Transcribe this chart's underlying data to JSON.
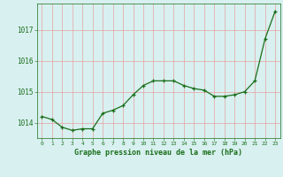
{
  "x": [
    0,
    1,
    2,
    3,
    4,
    5,
    6,
    7,
    8,
    9,
    10,
    11,
    12,
    13,
    14,
    15,
    16,
    17,
    18,
    19,
    20,
    21,
    22,
    23
  ],
  "y": [
    1014.2,
    1014.1,
    1013.85,
    1013.75,
    1013.8,
    1013.8,
    1014.3,
    1014.4,
    1014.55,
    1014.9,
    1015.2,
    1015.35,
    1015.35,
    1015.35,
    1015.2,
    1015.1,
    1015.05,
    1014.85,
    1014.85,
    1014.9,
    1015.0,
    1015.35,
    1016.7,
    1017.6
  ],
  "line_color": "#1a6e1a",
  "marker": "+",
  "bg_color": "#d8f0f0",
  "grid_color": "#e8a0a0",
  "axis_label_color": "#1a6e1a",
  "tick_color": "#1a6e1a",
  "xlabel": "Graphe pression niveau de la mer (hPa)",
  "ylim": [
    1013.5,
    1017.85
  ],
  "yticks": [
    1014,
    1015,
    1016,
    1017
  ],
  "xtick_labels": [
    "0",
    "1",
    "2",
    "3",
    "4",
    "5",
    "6",
    "7",
    "8",
    "9",
    "10",
    "11",
    "12",
    "13",
    "14",
    "15",
    "16",
    "17",
    "18",
    "19",
    "20",
    "21",
    "22",
    "23"
  ]
}
